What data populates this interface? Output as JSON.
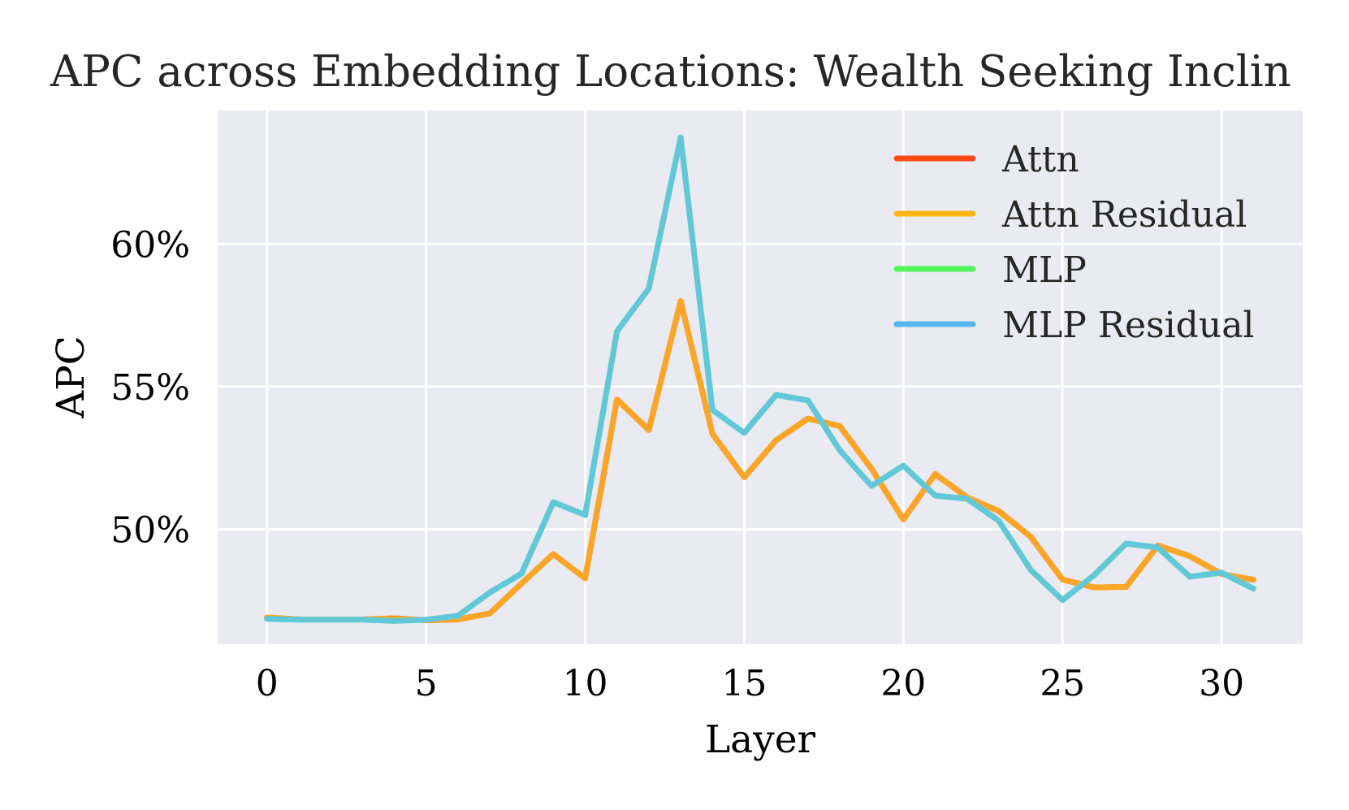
{
  "chart_data": {
    "type": "line",
    "title": "APC across Embedding Locations: Wealth Seeking Inclin",
    "xlabel": "Layer",
    "ylabel": "APC",
    "xlim": [
      -1.55,
      32.55
    ],
    "ylim": [
      0.4597,
      0.6468
    ],
    "grid": true,
    "legend_position": "top-right",
    "x_ticks": [
      0,
      5,
      10,
      15,
      20,
      25,
      30
    ],
    "x_tick_labels": [
      "0",
      "5",
      "10",
      "15",
      "20",
      "25",
      "30"
    ],
    "y_ticks": [
      0.5,
      0.55,
      0.6
    ],
    "y_tick_labels": [
      "50%",
      "55%",
      "60%"
    ],
    "x": [
      0,
      1,
      2,
      3,
      4,
      5,
      6,
      7,
      8,
      9,
      10,
      11,
      12,
      13,
      14,
      15,
      16,
      17,
      18,
      19,
      20,
      21,
      22,
      23,
      24,
      25,
      26,
      27,
      28,
      29,
      30,
      31
    ],
    "series": [
      {
        "name": "Attn",
        "color": "#ff4b12",
        "values": [
          0.4691,
          0.4684,
          0.4684,
          0.4684,
          0.4688,
          0.4681,
          0.4684,
          0.4705,
          0.481,
          0.4913,
          0.4828,
          0.5455,
          0.5348,
          0.58,
          0.5335,
          0.5182,
          0.5312,
          0.5388,
          0.5362,
          0.5212,
          0.5034,
          0.5194,
          0.5112,
          0.5064,
          0.4974,
          0.4824,
          0.4796,
          0.4798,
          0.4943,
          0.4906,
          0.4843,
          0.4823
        ]
      },
      {
        "name": "Attn Residual",
        "color": "#f9b60f",
        "values": [
          0.4691,
          0.4684,
          0.4684,
          0.4684,
          0.4688,
          0.4681,
          0.4684,
          0.4705,
          0.481,
          0.4913,
          0.4828,
          0.5455,
          0.5348,
          0.58,
          0.5335,
          0.5182,
          0.5312,
          0.5388,
          0.5362,
          0.5212,
          0.5034,
          0.5194,
          0.5112,
          0.5064,
          0.4974,
          0.4824,
          0.4796,
          0.4798,
          0.4943,
          0.4906,
          0.4843,
          0.4823
        ]
      },
      {
        "name": "MLP",
        "color": "#52f65a",
        "values": [
          0.4686,
          0.4683,
          0.4683,
          0.4683,
          0.4679,
          0.4683,
          0.4697,
          0.4778,
          0.4845,
          0.5095,
          0.505,
          0.5694,
          0.5844,
          0.6374,
          0.5418,
          0.5338,
          0.5471,
          0.5452,
          0.5277,
          0.5152,
          0.5223,
          0.5118,
          0.5107,
          0.503,
          0.4858,
          0.4752,
          0.484,
          0.495,
          0.4936,
          0.4834,
          0.4848,
          0.4792
        ]
      },
      {
        "name": "MLP Residual",
        "color": "#55b7f0",
        "values": [
          0.4686,
          0.4683,
          0.4683,
          0.4683,
          0.4679,
          0.4683,
          0.4697,
          0.4778,
          0.4845,
          0.5095,
          0.505,
          0.5694,
          0.5844,
          0.6374,
          0.5418,
          0.5338,
          0.5471,
          0.5452,
          0.5277,
          0.5152,
          0.5223,
          0.5118,
          0.5107,
          0.503,
          0.4858,
          0.4752,
          0.484,
          0.495,
          0.4936,
          0.4834,
          0.4848,
          0.4792
        ]
      }
    ],
    "plotted_line_colors": {
      "Attn Residual": "#fca627",
      "MLP Residual": "#62c7d8"
    }
  }
}
